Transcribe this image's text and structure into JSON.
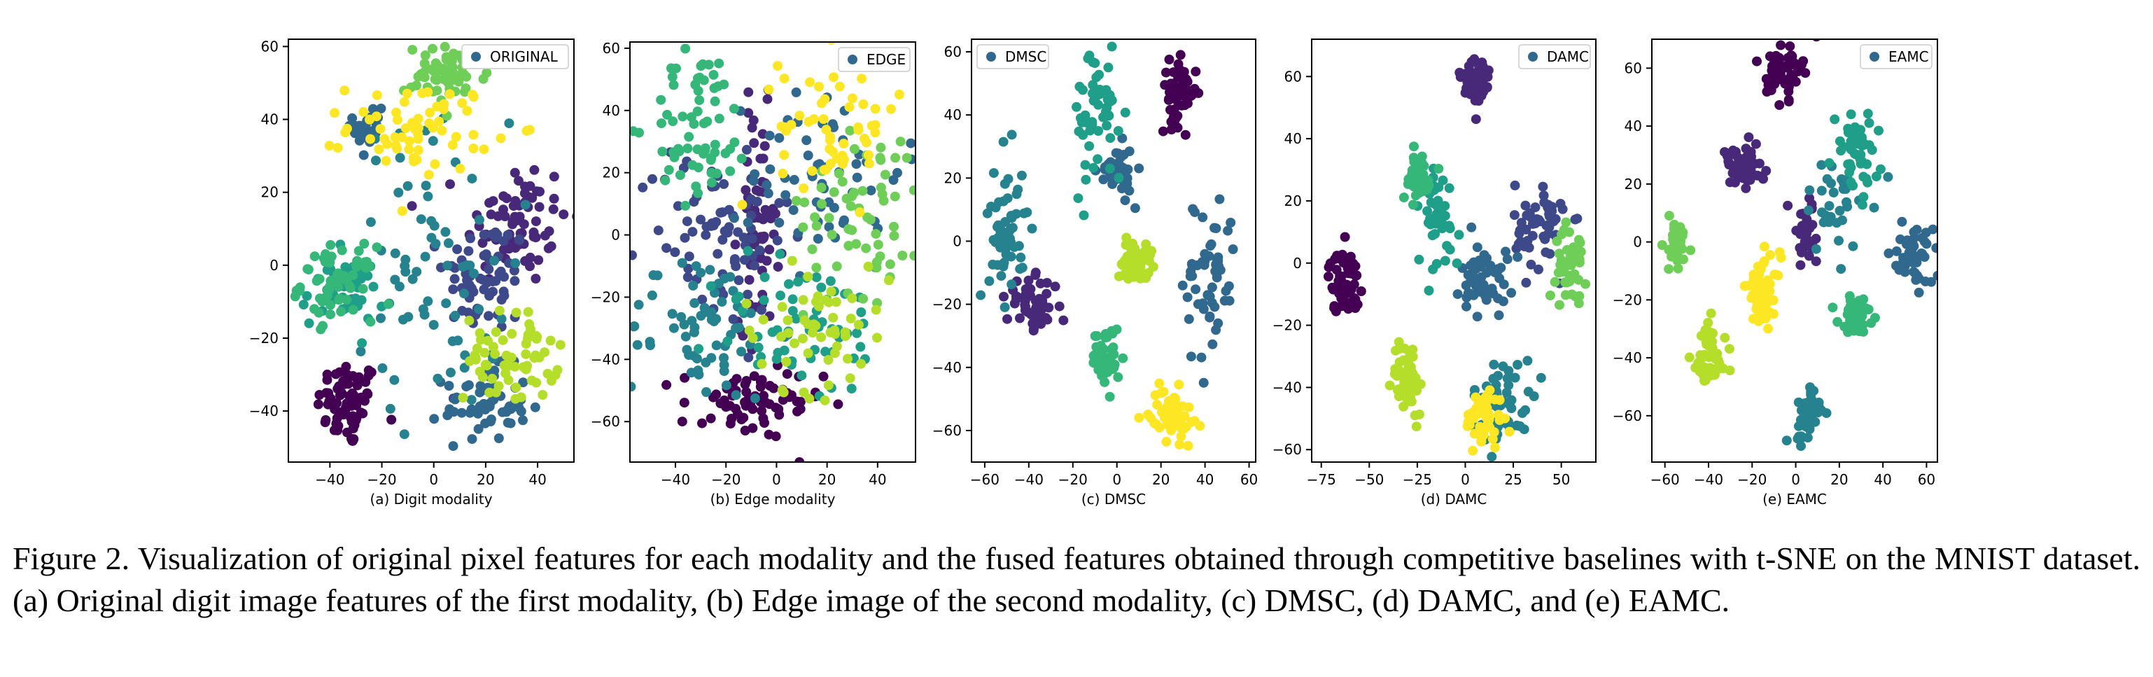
{
  "palette": [
    "#440154",
    "#482878",
    "#3e4989",
    "#31688e",
    "#26828e",
    "#1f9e89",
    "#35b779",
    "#6ece58",
    "#b5de2b",
    "#fde725"
  ],
  "legend_marker_color": "#31688e",
  "caption": "Figure 2. Visualization of original pixel features for each modality and the fused features obtained through competitive baselines with t-SNE on the MNIST dataset. (a) Original digit image features of the first modality, (b) Edge image of the second modality, (c) DMSC, (d) DAMC, and (e) EAMC.",
  "chart_data": [
    {
      "type": "scatter",
      "caption": "(a) Digit modality",
      "legend": "ORIGINAL",
      "legend_position": "upper-right",
      "xlim": [
        -56,
        54
      ],
      "ylim": [
        -54,
        62
      ],
      "xticks": [
        -40,
        -20,
        0,
        20,
        40
      ],
      "yticks": [
        -40,
        -20,
        0,
        20,
        40,
        60
      ],
      "grid": false,
      "clusters": [
        {
          "class": 0,
          "cx": -33,
          "cy": -38,
          "sx": 6,
          "sy": 6,
          "n": 70
        },
        {
          "class": 1,
          "cx": 32,
          "cy": 12,
          "sx": 10,
          "sy": 9,
          "n": 70
        },
        {
          "class": 2,
          "cx": 20,
          "cy": -3,
          "sx": 8,
          "sy": 8,
          "n": 65
        },
        {
          "class": 3,
          "cx": 20,
          "cy": -38,
          "sx": 8,
          "sy": 5,
          "n": 60
        },
        {
          "class": 3,
          "cx": -25,
          "cy": 38,
          "sx": 3,
          "sy": 5,
          "n": 25
        },
        {
          "class": 4,
          "cx": 0,
          "cy": 0,
          "sx": 15,
          "sy": 20,
          "n": 70
        },
        {
          "class": 5,
          "cx": -35,
          "cy": -7,
          "sx": 8,
          "sy": 5,
          "n": 45
        },
        {
          "class": 6,
          "cx": -37,
          "cy": -5,
          "sx": 7,
          "sy": 5,
          "n": 60
        },
        {
          "class": 7,
          "cx": 5,
          "cy": 52,
          "sx": 8,
          "sy": 4,
          "n": 60
        },
        {
          "class": 8,
          "cx": 30,
          "cy": -25,
          "sx": 9,
          "sy": 6,
          "n": 65
        },
        {
          "class": 9,
          "cx": -5,
          "cy": 38,
          "sx": 14,
          "sy": 6,
          "n": 65
        }
      ]
    },
    {
      "type": "scatter",
      "caption": "(b) Edge modality",
      "legend": "EDGE",
      "legend_position": "upper-right",
      "xlim": [
        -58,
        55
      ],
      "ylim": [
        -73,
        62
      ],
      "xticks": [
        -40,
        -20,
        0,
        20,
        40
      ],
      "yticks": [
        -60,
        -40,
        -20,
        0,
        20,
        40,
        60
      ],
      "grid": false,
      "clusters": [
        {
          "class": 0,
          "cx": -10,
          "cy": -55,
          "sx": 14,
          "sy": 6,
          "n": 70
        },
        {
          "class": 1,
          "cx": -7,
          "cy": 5,
          "sx": 4,
          "sy": 17,
          "n": 65
        },
        {
          "class": 2,
          "cx": -25,
          "cy": 0,
          "sx": 15,
          "sy": 15,
          "n": 75
        },
        {
          "class": 3,
          "cx": 20,
          "cy": 20,
          "sx": 15,
          "sy": 15,
          "n": 60
        },
        {
          "class": 4,
          "cx": -30,
          "cy": -30,
          "sx": 15,
          "sy": 12,
          "n": 70
        },
        {
          "class": 5,
          "cx": 10,
          "cy": -30,
          "sx": 18,
          "sy": 12,
          "n": 60
        },
        {
          "class": 6,
          "cx": -30,
          "cy": 35,
          "sx": 10,
          "sy": 12,
          "n": 65
        },
        {
          "class": 7,
          "cx": 35,
          "cy": 10,
          "sx": 12,
          "sy": 15,
          "n": 60
        },
        {
          "class": 8,
          "cx": 15,
          "cy": -30,
          "sx": 15,
          "sy": 10,
          "n": 55
        },
        {
          "class": 9,
          "cx": 25,
          "cy": 35,
          "sx": 12,
          "sy": 12,
          "n": 55
        }
      ]
    },
    {
      "type": "scatter",
      "caption": "(c) DMSC",
      "legend": "DMSC",
      "legend_position": "upper-left",
      "xlim": [
        -66,
        63
      ],
      "ylim": [
        -70,
        64
      ],
      "xticks": [
        -60,
        -40,
        -20,
        0,
        20,
        40,
        60
      ],
      "yticks": [
        -60,
        -40,
        -20,
        0,
        20,
        40,
        60
      ],
      "grid": false,
      "clusters": [
        {
          "class": 0,
          "cx": 28,
          "cy": 47,
          "sx": 4,
          "sy": 5,
          "n": 55
        },
        {
          "class": 1,
          "cx": -38,
          "cy": -20,
          "sx": 6,
          "sy": 4,
          "n": 55
        },
        {
          "class": 3,
          "cx": 42,
          "cy": -12,
          "sx": 6,
          "sy": 14,
          "n": 55
        },
        {
          "class": 3,
          "cx": 0,
          "cy": 22,
          "sx": 4,
          "sy": 4,
          "n": 40
        },
        {
          "class": 4,
          "cx": -50,
          "cy": 5,
          "sx": 4,
          "sy": 12,
          "n": 55
        },
        {
          "class": 5,
          "cx": -8,
          "cy": 40,
          "sx": 6,
          "sy": 12,
          "n": 55
        },
        {
          "class": 6,
          "cx": -5,
          "cy": -37,
          "sx": 3,
          "sy": 5,
          "n": 45
        },
        {
          "class": 8,
          "cx": 8,
          "cy": -6,
          "sx": 4,
          "sy": 3,
          "n": 50
        },
        {
          "class": 9,
          "cx": 25,
          "cy": -55,
          "sx": 5,
          "sy": 4,
          "n": 60
        }
      ]
    },
    {
      "type": "scatter",
      "caption": "(d) DAMC",
      "legend": "DAMC",
      "legend_position": "upper-right",
      "xlim": [
        -80,
        68
      ],
      "ylim": [
        -64,
        72
      ],
      "xticks": [
        -75,
        -50,
        -25,
        0,
        25,
        50
      ],
      "yticks": [
        -60,
        -40,
        -20,
        0,
        20,
        40,
        60
      ],
      "grid": false,
      "clusters": [
        {
          "class": 0,
          "cx": -63,
          "cy": -6,
          "sx": 4,
          "sy": 5,
          "n": 55
        },
        {
          "class": 1,
          "cx": 5,
          "cy": 58,
          "sx": 4,
          "sy": 5,
          "n": 55
        },
        {
          "class": 2,
          "cx": 40,
          "cy": 12,
          "sx": 7,
          "sy": 7,
          "n": 55
        },
        {
          "class": 3,
          "cx": 10,
          "cy": -5,
          "sx": 6,
          "sy": 6,
          "n": 55
        },
        {
          "class": 4,
          "cx": 20,
          "cy": -45,
          "sx": 8,
          "sy": 7,
          "n": 55
        },
        {
          "class": 5,
          "cx": -15,
          "cy": 15,
          "sx": 6,
          "sy": 9,
          "n": 45
        },
        {
          "class": 6,
          "cx": -25,
          "cy": 28,
          "sx": 4,
          "sy": 4,
          "n": 45
        },
        {
          "class": 7,
          "cx": 55,
          "cy": 0,
          "sx": 4,
          "sy": 6,
          "n": 40
        },
        {
          "class": 8,
          "cx": -30,
          "cy": -37,
          "sx": 4,
          "sy": 6,
          "n": 55
        },
        {
          "class": 9,
          "cx": 10,
          "cy": -50,
          "sx": 5,
          "sy": 5,
          "n": 50
        }
      ]
    },
    {
      "type": "scatter",
      "caption": "(e) EAMC",
      "legend": "EAMC",
      "legend_position": "upper-right",
      "xlim": [
        -66,
        65
      ],
      "ylim": [
        -76,
        70
      ],
      "xticks": [
        -60,
        -40,
        -20,
        0,
        20,
        40,
        60
      ],
      "yticks": [
        -60,
        -40,
        -20,
        0,
        20,
        40,
        60
      ],
      "grid": false,
      "clusters": [
        {
          "class": 0,
          "cx": -5,
          "cy": 60,
          "sx": 4,
          "sy": 5,
          "n": 55
        },
        {
          "class": 1,
          "cx": -25,
          "cy": 25,
          "sx": 5,
          "sy": 4,
          "n": 55
        },
        {
          "class": 1,
          "cx": 5,
          "cy": 3,
          "sx": 4,
          "sy": 6,
          "n": 35
        },
        {
          "class": 3,
          "cx": 55,
          "cy": -5,
          "sx": 4,
          "sy": 5,
          "n": 50
        },
        {
          "class": 4,
          "cx": 5,
          "cy": -60,
          "sx": 3,
          "sy": 5,
          "n": 45
        },
        {
          "class": 4,
          "cx": 20,
          "cy": 15,
          "sx": 10,
          "sy": 10,
          "n": 35
        },
        {
          "class": 5,
          "cx": 28,
          "cy": 30,
          "sx": 5,
          "sy": 7,
          "n": 45
        },
        {
          "class": 6,
          "cx": 28,
          "cy": -25,
          "sx": 4,
          "sy": 3,
          "n": 40
        },
        {
          "class": 7,
          "cx": -55,
          "cy": 0,
          "sx": 3,
          "sy": 5,
          "n": 40
        },
        {
          "class": 8,
          "cx": -40,
          "cy": -40,
          "sx": 4,
          "sy": 6,
          "n": 50
        },
        {
          "class": 9,
          "cx": -15,
          "cy": -17,
          "sx": 4,
          "sy": 6,
          "n": 55
        }
      ]
    }
  ]
}
